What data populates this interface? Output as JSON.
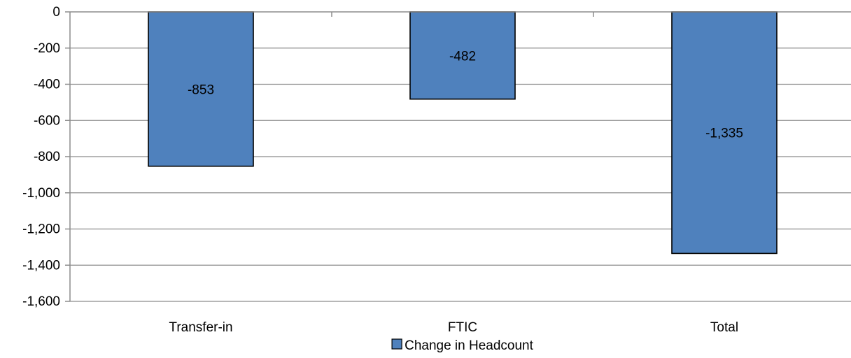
{
  "chart_data": {
    "type": "bar",
    "categories": [
      "Transfer-in",
      "FTIC",
      "Total"
    ],
    "series": [
      {
        "name": "Change in Headcount",
        "values": [
          -853,
          -482,
          -1335
        ],
        "data_labels": [
          "-853",
          "-482",
          "-1,335"
        ],
        "color": "#4f81bd"
      }
    ],
    "ylim": [
      -1600,
      0
    ],
    "y_ticks": [
      0,
      -200,
      -400,
      -600,
      -800,
      -1000,
      -1200,
      -1400,
      -1600
    ],
    "y_tick_labels": [
      "0",
      "-200",
      "-400",
      "-600",
      "-800",
      "-1,000",
      "-1,200",
      "-1,400",
      "-1,600"
    ],
    "grid": true,
    "legend": "bottom",
    "title": "",
    "xlabel": "",
    "ylabel": ""
  }
}
